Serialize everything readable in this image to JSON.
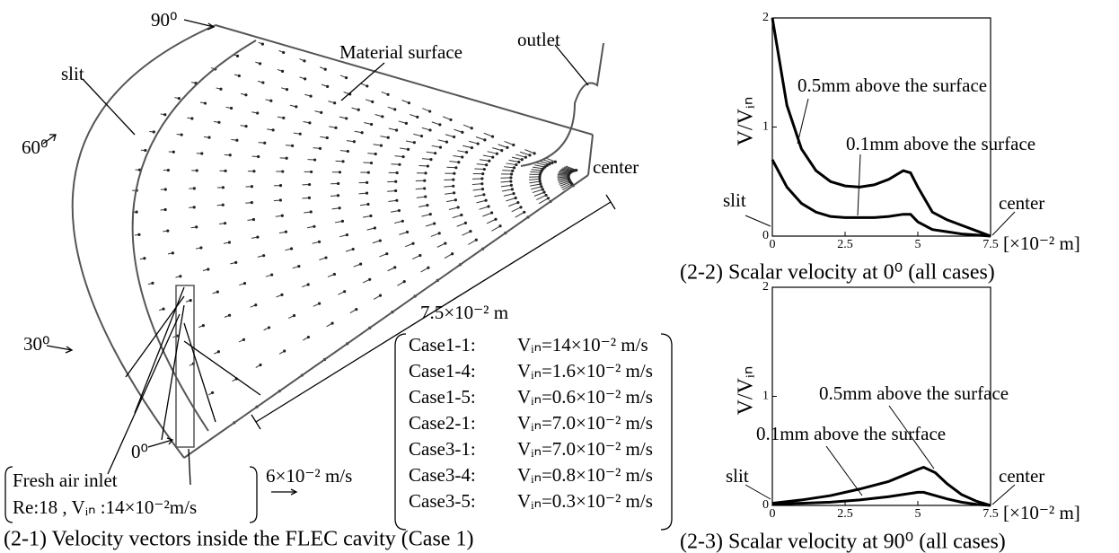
{
  "diagram": {
    "caption": "(2-1) Velocity vectors inside the FLEC cavity (Case 1)",
    "labels": [
      "90⁰",
      "slit",
      "Material surface",
      "outlet",
      "60⁰",
      "center",
      "7.5×10⁻² m",
      "30⁰",
      "0⁰",
      "6×10⁻² m/s"
    ],
    "inlet": [
      "Fresh air inlet",
      "Re:18 , Vᵢₙ :14×10⁻²m/s"
    ],
    "cases": [
      [
        "Case1-1:",
        "Vᵢₙ=14×10⁻² m/s"
      ],
      [
        "Case1-4:",
        "Vᵢₙ=1.6×10⁻² m/s"
      ],
      [
        "Case1-5:",
        "Vᵢₙ=0.6×10⁻² m/s"
      ],
      [
        "Case2-1:",
        "Vᵢₙ=7.0×10⁻² m/s"
      ],
      [
        "Case3-1:",
        "Vᵢₙ=7.0×10⁻² m/s"
      ],
      [
        "Case3-4:",
        "Vᵢₙ=0.8×10⁻² m/s"
      ],
      [
        "Case3-5:",
        "Vᵢₙ=0.3×10⁻² m/s"
      ]
    ]
  },
  "chart_data": [
    {
      "type": "line",
      "title": "(2-2) Scalar velocity at 0⁰ (all cases)",
      "ylabel": "V/Vᵢₙ",
      "xlabel": "[×10⁻² m]",
      "annotations": [
        "slit",
        "center"
      ],
      "x": [
        0,
        0.5,
        1,
        1.5,
        2,
        2.5,
        3,
        3.5,
        4,
        4.5,
        4.75,
        5,
        5.5,
        6,
        6.5,
        7,
        7.5
      ],
      "series": [
        {
          "name": "0.5mm above the surface",
          "color": "#000000",
          "values": [
            2.0,
            1.2,
            0.8,
            0.6,
            0.5,
            0.46,
            0.45,
            0.47,
            0.52,
            0.6,
            0.58,
            0.45,
            0.22,
            0.15,
            0.1,
            0.05,
            0.0
          ]
        },
        {
          "name": "0.1mm above the surface",
          "color": "#000000",
          "values": [
            0.7,
            0.45,
            0.3,
            0.22,
            0.18,
            0.17,
            0.17,
            0.17,
            0.18,
            0.2,
            0.2,
            0.13,
            0.06,
            0.04,
            0.02,
            0.01,
            0.0
          ]
        }
      ],
      "xlim": [
        0,
        7.5
      ],
      "ylim": [
        0,
        2
      ],
      "xticks": [
        0,
        2.5,
        5,
        7.5
      ],
      "yticks": [
        0,
        1,
        2
      ]
    },
    {
      "type": "line",
      "title": "(2-3) Scalar velocity at 90⁰ (all cases)",
      "ylabel": "V/Vᵢₙ",
      "xlabel": "[×10⁻² m]",
      "annotations": [
        "slit",
        "center"
      ],
      "x": [
        0,
        1,
        2,
        3,
        4,
        5,
        5.2,
        5.6,
        6,
        6.5,
        7,
        7.5
      ],
      "series": [
        {
          "name": "0.5mm above the surface",
          "color": "#000000",
          "values": [
            0.02,
            0.05,
            0.09,
            0.15,
            0.22,
            0.33,
            0.35,
            0.3,
            0.2,
            0.1,
            0.04,
            0.0
          ]
        },
        {
          "name": "0.1mm above the surface",
          "color": "#000000",
          "values": [
            0.01,
            0.02,
            0.03,
            0.05,
            0.08,
            0.12,
            0.12,
            0.09,
            0.06,
            0.03,
            0.01,
            0.0
          ]
        }
      ],
      "xlim": [
        0,
        7.5
      ],
      "ylim": [
        0,
        2
      ],
      "xticks": [
        0,
        2.5,
        5,
        7.5
      ],
      "yticks": [
        0,
        1,
        2
      ]
    }
  ]
}
